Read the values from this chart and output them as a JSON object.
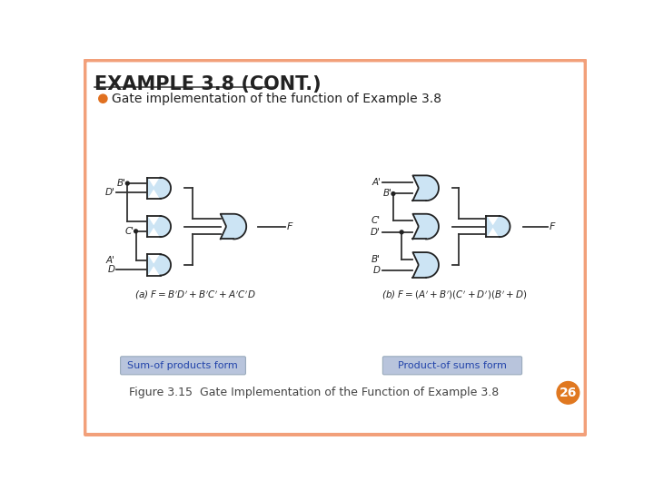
{
  "title": "EXAMPLE 3.8 (CONT.)",
  "bullet_text": "Gate implementation of the function of Example 3.8",
  "figure_caption": "Figure 3.15  Gate Implementation of the Function of Example 3.8",
  "page_number": "26",
  "box_left_text": "Sum-of products form",
  "box_right_text": "Product-of sums form",
  "bg_color": "#ffffff",
  "border_color": "#f2a07a",
  "title_underline_color": "#444444",
  "title_color": "#222222",
  "bullet_color": "#e07020",
  "gate_fill": "#cce4f4",
  "gate_edge": "#222222",
  "wire_color": "#333333",
  "box_fill": "#b8c4dc",
  "box_text_color": "#2244aa",
  "fig_caption_color": "#444444",
  "page_circle_color": "#e07820",
  "page_text_color": "#ffffff"
}
